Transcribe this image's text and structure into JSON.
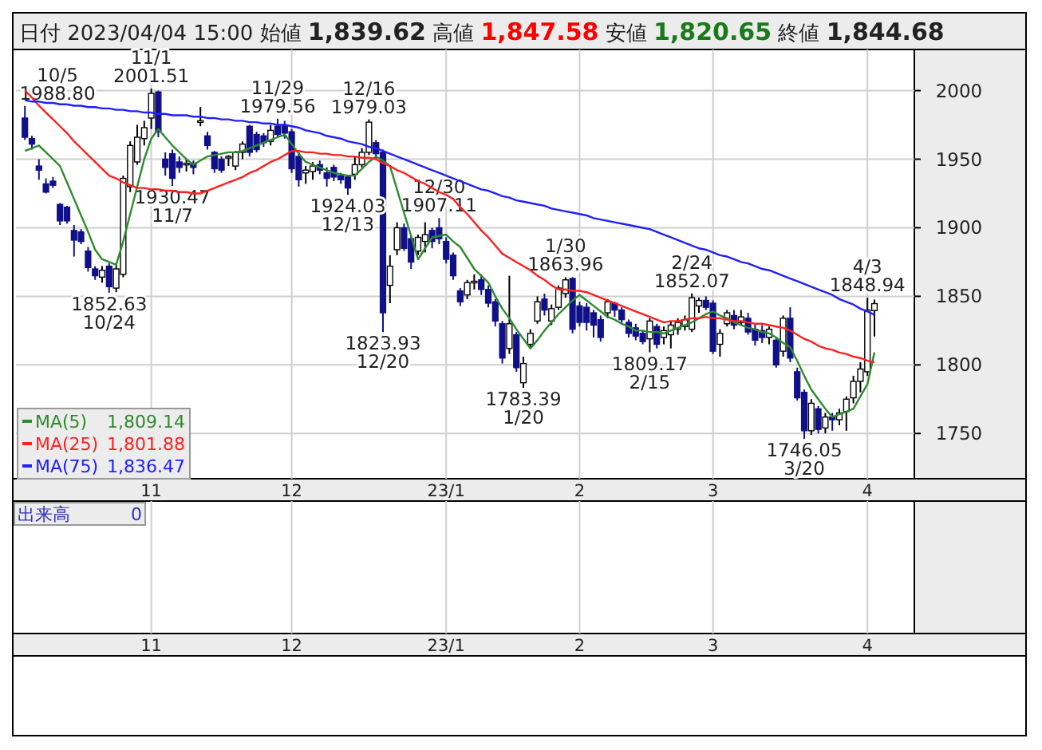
{
  "chart_data": {
    "type": "candlestick",
    "title": "日付 2023/04/04 15:00 始値 **1,839.62** 高値 **1,847.58** 安値 **1,820.65** 終値 **1,844.68**",
    "categories": [
      null,
      null,
      null,
      null,
      null,
      null,
      null,
      null,
      null,
      null,
      null,
      null,
      null,
      null,
      null,
      null,
      null,
      null,
      "11",
      null,
      null,
      null,
      null,
      null,
      null,
      null,
      null,
      null,
      null,
      null,
      null,
      null,
      null,
      null,
      null,
      null,
      null,
      null,
      "12",
      null,
      null,
      null,
      null,
      null,
      null,
      null,
      null,
      null,
      null,
      null,
      null,
      null,
      null,
      null,
      null,
      null,
      null,
      null,
      null,
      null,
      "23/1",
      null,
      null,
      null,
      null,
      null,
      null,
      null,
      null,
      null,
      null,
      null,
      null,
      null,
      null,
      null,
      null,
      null,
      null,
      "2",
      null,
      null,
      null,
      null,
      null,
      null,
      null,
      null,
      null,
      null,
      null,
      null,
      null,
      null,
      null,
      null,
      null,
      null,
      "3",
      null,
      null,
      null,
      null,
      null,
      null,
      null,
      null,
      null,
      null,
      null,
      null,
      null,
      null,
      null,
      null,
      null,
      null,
      null,
      null,
      null,
      "4",
      null
    ],
    "ohlc": [
      [
        1980,
        1988.8,
        1964,
        1966
      ],
      [
        1965,
        1967,
        1957,
        1961
      ],
      [
        1945,
        1950,
        1935,
        1942
      ],
      [
        1932,
        1936,
        1925,
        1926
      ],
      [
        1934,
        1937,
        1929,
        1931
      ],
      [
        1917,
        1918,
        1902,
        1905
      ],
      [
        1915,
        1916,
        1903,
        1905
      ],
      [
        1898,
        1902,
        1879,
        1891
      ],
      [
        1897,
        1899,
        1888,
        1890
      ],
      [
        1883,
        1886,
        1868,
        1871
      ],
      [
        1870,
        1872,
        1862,
        1865
      ],
      [
        1864,
        1872,
        1860,
        1869
      ],
      [
        1872,
        1874,
        1852.63,
        1857
      ],
      [
        1856,
        1873,
        1853,
        1870
      ],
      [
        1866,
        1938,
        1864,
        1936
      ],
      [
        1930,
        1963,
        1926,
        1960
      ],
      [
        1948,
        1975,
        1946,
        1966
      ],
      [
        1965,
        1978,
        1960,
        1973
      ],
      [
        1980,
        2001.51,
        1972,
        1998
      ],
      [
        1999,
        2000,
        1966,
        1970
      ],
      [
        1950,
        1955,
        1938,
        1944
      ],
      [
        1954,
        1957,
        1930.47,
        1936
      ],
      [
        1948,
        1952,
        1940,
        1944
      ],
      [
        1946,
        1950,
        1941,
        1947
      ],
      [
        1947,
        1949,
        1939,
        1944
      ],
      [
        1977,
        1988,
        1974,
        1978
      ],
      [
        1967,
        1970,
        1957,
        1960
      ],
      [
        1955,
        1956,
        1940,
        1943
      ],
      [
        1950,
        1952,
        1940,
        1942
      ],
      [
        1951,
        1953,
        1945,
        1952
      ],
      [
        1945,
        1956,
        1942,
        1955
      ],
      [
        1955,
        1963,
        1950,
        1961
      ],
      [
        1974,
        1975,
        1952,
        1955
      ],
      [
        1968,
        1970,
        1955,
        1957
      ],
      [
        1967,
        1969,
        1959,
        1962
      ],
      [
        1963,
        1975,
        1960,
        1971
      ],
      [
        1974,
        1979.56,
        1966,
        1968
      ],
      [
        1975,
        1978,
        1965,
        1969
      ],
      [
        1970,
        1972,
        1940,
        1943
      ],
      [
        1952,
        1955,
        1930,
        1935
      ],
      [
        1940,
        1945,
        1932,
        1942
      ],
      [
        1941,
        1948,
        1935,
        1945
      ],
      [
        1946,
        1949,
        1939,
        1942
      ],
      [
        1940,
        1944,
        1930,
        1936
      ],
      [
        1944,
        1946,
        1934,
        1937
      ],
      [
        1938,
        1940,
        1932,
        1935
      ],
      [
        1937,
        1938,
        1924.03,
        1929
      ],
      [
        1939,
        1952,
        1935,
        1946
      ],
      [
        1946,
        1958,
        1944,
        1955
      ],
      [
        1955,
        1979.03,
        1953,
        1977
      ],
      [
        1962,
        1964,
        1950,
        1954
      ],
      [
        1955,
        1957,
        1823.93,
        1838
      ],
      [
        1858,
        1880,
        1845,
        1872
      ],
      [
        1884,
        1904,
        1880,
        1900
      ],
      [
        1900,
        1903,
        1883,
        1885
      ],
      [
        1892,
        1895,
        1870,
        1875
      ],
      [
        1883,
        1895,
        1880,
        1893
      ],
      [
        1890,
        1904,
        1882,
        1895
      ],
      [
        1898,
        1900,
        1885,
        1890
      ],
      [
        1900,
        1907.11,
        1888,
        1892
      ],
      [
        1890,
        1893,
        1874,
        1877
      ],
      [
        1880,
        1882,
        1862,
        1865
      ],
      [
        1854,
        1856,
        1843,
        1846
      ],
      [
        1851,
        1862,
        1848,
        1860
      ],
      [
        1860,
        1866,
        1855,
        1861
      ],
      [
        1862,
        1866,
        1851,
        1855
      ],
      [
        1855,
        1858,
        1842,
        1845
      ],
      [
        1846,
        1848,
        1828,
        1832
      ],
      [
        1830,
        1832,
        1801,
        1805
      ],
      [
        1812,
        1865,
        1808,
        1830
      ],
      [
        1822,
        1824,
        1795,
        1798
      ],
      [
        1787,
        1806,
        1783.39,
        1801
      ],
      [
        1815,
        1826,
        1812,
        1823
      ],
      [
        1832,
        1850,
        1830,
        1846
      ],
      [
        1848,
        1852,
        1836,
        1840
      ],
      [
        1832,
        1844,
        1829,
        1841
      ],
      [
        1842,
        1858,
        1840,
        1856
      ],
      [
        1852,
        1863.96,
        1849,
        1862
      ],
      [
        1863,
        1864,
        1823,
        1826
      ],
      [
        1843,
        1846,
        1828,
        1831
      ],
      [
        1842,
        1845,
        1825,
        1831
      ],
      [
        1838,
        1840,
        1820,
        1829
      ],
      [
        1833,
        1836,
        1817,
        1820
      ],
      [
        1838,
        1848,
        1834,
        1846
      ],
      [
        1845,
        1846,
        1835,
        1840
      ],
      [
        1840,
        1842,
        1830,
        1833
      ],
      [
        1831,
        1833,
        1820,
        1823
      ],
      [
        1827,
        1830,
        1818,
        1821
      ],
      [
        1823,
        1825,
        1815,
        1817
      ],
      [
        1819,
        1834,
        1809.17,
        1832
      ],
      [
        1828,
        1830,
        1812,
        1815
      ],
      [
        1820,
        1828,
        1815,
        1825
      ],
      [
        1822,
        1832,
        1812,
        1829
      ],
      [
        1826,
        1834,
        1822,
        1831
      ],
      [
        1828,
        1836,
        1825,
        1833
      ],
      [
        1826,
        1852.07,
        1824,
        1849
      ],
      [
        1843,
        1849,
        1838,
        1847
      ],
      [
        1847,
        1850,
        1840,
        1842
      ],
      [
        1845,
        1847,
        1808,
        1810
      ],
      [
        1815,
        1826,
        1806,
        1823
      ],
      [
        1830,
        1840,
        1828,
        1838
      ],
      [
        1836,
        1840,
        1826,
        1829
      ],
      [
        1831,
        1840,
        1829,
        1835
      ],
      [
        1834,
        1838,
        1822,
        1824
      ],
      [
        1826,
        1830,
        1814,
        1818
      ],
      [
        1825,
        1829,
        1816,
        1820
      ],
      [
        1820,
        1828,
        1815,
        1826
      ],
      [
        1818,
        1820,
        1798,
        1800
      ],
      [
        1810,
        1836,
        1806,
        1834
      ],
      [
        1834,
        1842,
        1802,
        1805
      ],
      [
        1795,
        1798,
        1774,
        1776
      ],
      [
        1780,
        1782,
        1746.05,
        1752
      ],
      [
        1752,
        1775,
        1749,
        1772
      ],
      [
        1768,
        1770,
        1750,
        1753
      ],
      [
        1754,
        1765,
        1750,
        1762
      ],
      [
        1762,
        1765,
        1752,
        1760
      ],
      [
        1760,
        1768,
        1756,
        1765
      ],
      [
        1766,
        1777,
        1752,
        1775
      ],
      [
        1776,
        1792,
        1772,
        1788
      ],
      [
        1788,
        1802,
        1780,
        1797
      ],
      [
        1795,
        1848.94,
        1792,
        1840
      ],
      [
        1839.62,
        1847.58,
        1820.65,
        1844.68
      ]
    ],
    "series": [
      {
        "type": "line",
        "name": "MA(5) 1,809.14",
        "color": "#2e8b2e",
        "values": [
          1956,
          1958,
          1960,
          1955,
          1950,
          1945,
          1933,
          1921,
          1909,
          1897,
          1884,
          1877,
          1875,
          1873,
          1890,
          1910,
          1930,
          1950,
          1965,
          1972,
          1966,
          1960,
          1955,
          1950,
          1946,
          1949,
          1952,
          1953,
          1954,
          1955,
          1955,
          1956,
          1958,
          1960,
          1962,
          1964,
          1966,
          1968,
          1961,
          1954,
          1948,
          1946,
          1944,
          1942,
          1940,
          1939,
          1938,
          1938,
          1943,
          1948,
          1952,
          1949,
          1945,
          1928,
          1911,
          1894,
          1877,
          1885,
          1893,
          1894,
          1895,
          1890,
          1886,
          1878,
          1870,
          1865,
          1860,
          1850,
          1841,
          1834,
          1826,
          1819,
          1812,
          1818,
          1825,
          1831,
          1837,
          1842,
          1847,
          1851,
          1847,
          1843,
          1839,
          1835,
          1833,
          1830,
          1828,
          1825,
          1825,
          1824,
          1824,
          1823,
          1825,
          1827,
          1829,
          1831,
          1834,
          1837,
          1839,
          1836,
          1834,
          1831,
          1829,
          1827,
          1826,
          1824,
          1823,
          1820,
          1816,
          1813,
          1803,
          1792,
          1782,
          1775,
          1768,
          1762,
          1764,
          1766,
          1768,
          1777,
          1786,
          1809.14
        ]
      },
      {
        "type": "line",
        "name": "MA(25) 1,801.88",
        "color": "#ff2020",
        "values": [
          2000,
          1995,
          1989,
          1984,
          1979,
          1974,
          1969,
          1963,
          1958,
          1953,
          1948,
          1943,
          1938,
          1936,
          1933,
          1931,
          1929,
          1929,
          1928,
          1928,
          1927,
          1927,
          1926,
          1926,
          1925,
          1925,
          1927,
          1929,
          1931,
          1933,
          1935,
          1937,
          1940,
          1942,
          1945,
          1948,
          1950,
          1953,
          1956,
          1956,
          1955,
          1955,
          1954,
          1954,
          1953,
          1953,
          1952,
          1952,
          1951,
          1951,
          1950,
          1947,
          1945,
          1942,
          1940,
          1937,
          1934,
          1932,
          1929,
          1926,
          1924,
          1921,
          1915,
          1910,
          1904,
          1898,
          1893,
          1887,
          1881,
          1878,
          1875,
          1872,
          1869,
          1865,
          1862,
          1858,
          1855,
          1855,
          1854,
          1854,
          1853,
          1851,
          1849,
          1847,
          1845,
          1843,
          1841,
          1839,
          1837,
          1835,
          1833,
          1831,
          1832,
          1832,
          1833,
          1834,
          1834,
          1835,
          1834,
          1834,
          1833,
          1832,
          1832,
          1831,
          1830,
          1830,
          1829,
          1828,
          1827,
          1825,
          1822,
          1819,
          1817,
          1814,
          1812,
          1811,
          1809,
          1808,
          1806,
          1805,
          1803,
          1801.88
        ]
      },
      {
        "type": "line",
        "name": "MA(75) 1,836.47",
        "color": "#2020ff",
        "values": [
          1993,
          1992,
          1992,
          1991,
          1991,
          1990,
          1990,
          1989,
          1989,
          1988,
          1988,
          1987,
          1987,
          1986,
          1986,
          1985,
          1985,
          1984,
          1984,
          1983,
          1983,
          1982,
          1982,
          1982,
          1981,
          1981,
          1980,
          1980,
          1979,
          1979,
          1978,
          1978,
          1977,
          1977,
          1976,
          1976,
          1975,
          1975,
          1974,
          1973,
          1971,
          1970,
          1969,
          1967,
          1966,
          1965,
          1963,
          1962,
          1961,
          1959,
          1958,
          1956,
          1954,
          1952,
          1950,
          1948,
          1946,
          1944,
          1942,
          1940,
          1938,
          1936,
          1934,
          1932,
          1930,
          1928,
          1927,
          1925,
          1923,
          1922,
          1920,
          1919,
          1918,
          1917,
          1916,
          1914,
          1913,
          1912,
          1911,
          1910,
          1909,
          1907,
          1906,
          1905,
          1904,
          1903,
          1902,
          1901,
          1900,
          1899,
          1897,
          1895,
          1893,
          1891,
          1889,
          1887,
          1885,
          1884,
          1882,
          1880,
          1879,
          1877,
          1875,
          1874,
          1872,
          1870,
          1869,
          1867,
          1865,
          1863,
          1861,
          1859,
          1857,
          1855,
          1853,
          1851,
          1848,
          1846,
          1844,
          1841,
          1839,
          1836.47
        ]
      }
    ],
    "ylim": [
      1717,
      2030
    ],
    "yticks": [
      1750,
      1800,
      1850,
      1900,
      1950,
      2000
    ],
    "grid": true,
    "legend": "bottom left",
    "annotations": [
      {
        "text": "10/5\n1988.80",
        "y": 1988.8
      },
      {
        "text": "11/1\n2001.51",
        "y": 2001.51
      },
      {
        "text": "1930.47\n11/7",
        "y": 1930.47
      },
      {
        "text": "1852.63\n10/24",
        "y": 1852.63
      },
      {
        "text": "11/29\n1979.56",
        "y": 1979.56
      },
      {
        "text": "12/16\n1979.03",
        "y": 1979.03
      },
      {
        "text": "1924.03\n12/13",
        "y": 1924.03
      },
      {
        "text": "1823.93\n12/20",
        "y": 1823.93
      },
      {
        "text": "12/30\n1907.11",
        "y": 1907.11
      },
      {
        "text": "1/30\n1863.96",
        "y": 1863.96
      },
      {
        "text": "1783.39\n1/20",
        "y": 1783.39
      },
      {
        "text": "2/24\n1852.07",
        "y": 1852.07
      },
      {
        "text": "1809.17\n2/15",
        "y": 1809.17
      },
      {
        "text": "4/3\n1848.94",
        "y": 1848.94
      },
      {
        "text": "1746.05\n3/20",
        "y": 1746.05
      },
      "出来高 0"
    ]
  }
}
